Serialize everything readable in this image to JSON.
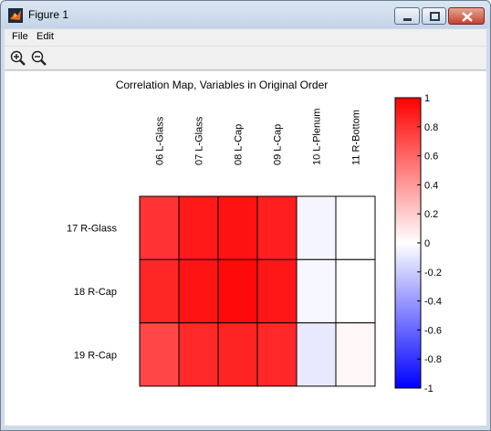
{
  "window": {
    "title": "Figure 1"
  },
  "menu": {
    "file": "File",
    "edit": "Edit"
  },
  "toolbar": {
    "zoom_in_icon": "zoom-in-icon",
    "zoom_out_icon": "zoom-out-icon"
  },
  "colors": {
    "window_frame": "#cfdbe9",
    "positive": "#ff0000",
    "negative": "#0000ff",
    "zero": "#ffffff"
  },
  "chart_data": {
    "type": "heatmap",
    "title": "Correlation Map, Variables in Original Order",
    "columns": [
      "06 L-Glass",
      "07 L-Glass",
      "08 L-Cap",
      "09 L-Cap",
      "10 L-Plenum",
      "11 R-Bottom"
    ],
    "rows": [
      "17 R-Glass",
      "18 R-Cap",
      "19 R-Cap"
    ],
    "values": [
      [
        0.8,
        0.9,
        0.93,
        0.88,
        -0.04,
        0.0
      ],
      [
        0.85,
        0.92,
        0.96,
        0.91,
        -0.03,
        0.0
      ],
      [
        0.72,
        0.84,
        0.86,
        0.84,
        -0.09,
        0.03
      ]
    ],
    "colorbar": {
      "range": [
        -1,
        1
      ],
      "ticks": [
        "1",
        "0.8",
        "0.6",
        "0.4",
        "0.2",
        "0",
        "-0.2",
        "-0.4",
        "-0.6",
        "-0.8",
        "-1"
      ]
    }
  }
}
